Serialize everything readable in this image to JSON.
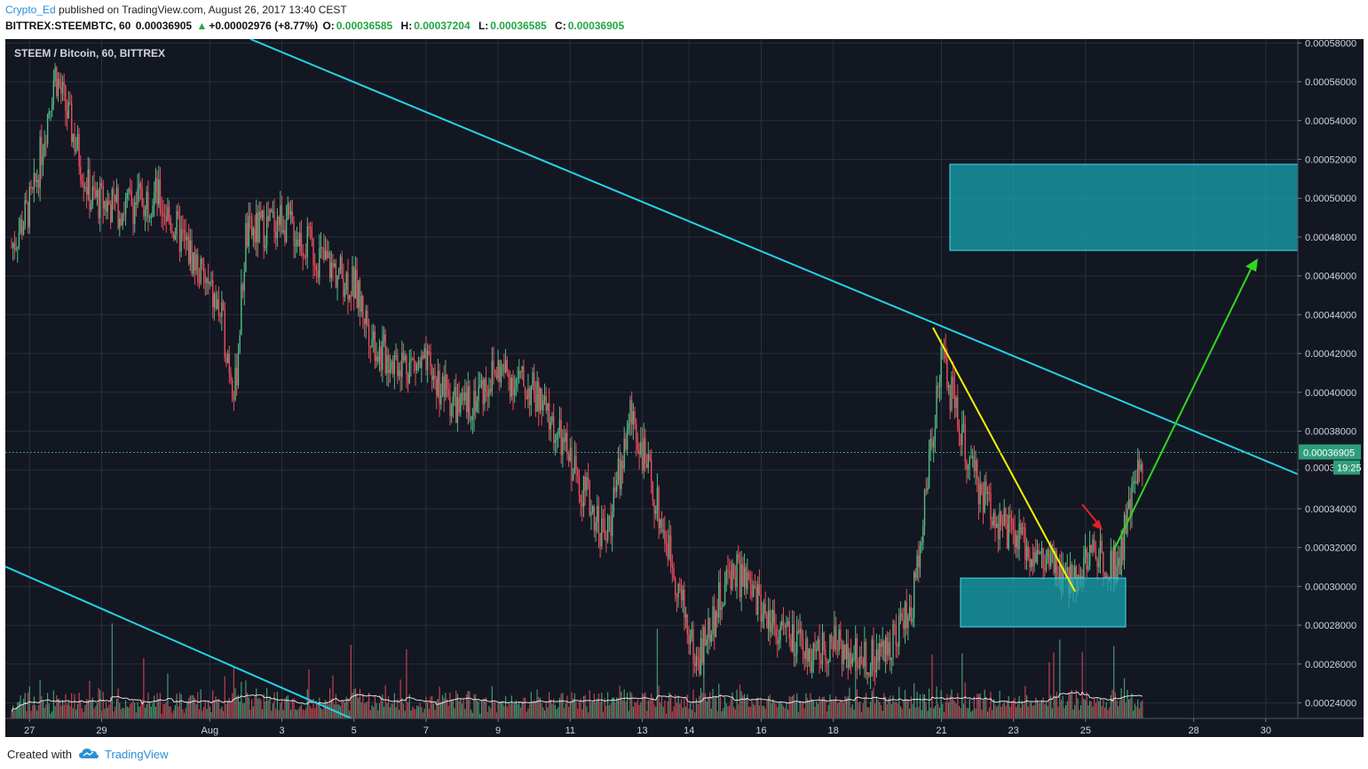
{
  "header": {
    "author": "Crypto_Ed",
    "published": "published on TradingView.com, August 26, 2017 13:40 CEST",
    "symbol": "BITTREX:STEEMBTC, 60",
    "last": "0.00036905",
    "change": "+0.00002976 (+8.77%)",
    "o_label": "O:",
    "o_value": "0.00036585",
    "h_label": "H:",
    "h_value": "0.00037204",
    "l_label": "L:",
    "l_value": "0.00036585",
    "c_label": "C:",
    "c_value": "0.00036905"
  },
  "footer": {
    "created_with": "Created with",
    "brand": "TradingView"
  },
  "colors": {
    "background": "#131722",
    "grid": "#2a2e39",
    "up": "#53b987",
    "down": "#eb4d5c",
    "trendline": "#22d4e6",
    "yellow_line": "#f5f500",
    "green_arrow": "#2fd81e",
    "red_arrow": "#e52222",
    "zone_fill": "#17a5b0",
    "price_line": "#2e9e7a"
  },
  "chart_data": {
    "type": "candlestick",
    "title": "STEEM / Bitcoin, 60, BITTREX",
    "xlabel": "",
    "ylabel": "",
    "x_ticks": [
      "27",
      "29",
      "Aug",
      "3",
      "5",
      "7",
      "9",
      "11",
      "13",
      "14",
      "16",
      "18",
      "21",
      "23",
      "25",
      "28",
      "30"
    ],
    "y_ticks": [
      "0.00024000",
      "0.00026000",
      "0.00028000",
      "0.00030000",
      "0.00032000",
      "0.00034000",
      "0.00036000",
      "0.00038000",
      "0.00040000",
      "0.00042000",
      "0.00044000",
      "0.00046000",
      "0.00048000",
      "0.00050000",
      "0.00052000",
      "0.00054000",
      "0.00056000",
      "0.00058000"
    ],
    "ylim": [
      0.000232,
      0.000582
    ],
    "current_price": {
      "label": "0.00036905",
      "value": 0.00036905,
      "countdown": "19:25",
      "partial_label": "0.0003"
    },
    "price_path": [
      {
        "x": 0,
        "y": 0.000475
      },
      {
        "x": 0.6,
        "y": 0.0005
      },
      {
        "x": 1.2,
        "y": 0.000565
      },
      {
        "x": 1.6,
        "y": 0.00054
      },
      {
        "x": 2.2,
        "y": 0.0005
      },
      {
        "x": 3.0,
        "y": 0.000495
      },
      {
        "x": 4.0,
        "y": 0.000502
      },
      {
        "x": 5.0,
        "y": 0.00047
      },
      {
        "x": 5.8,
        "y": 0.00044
      },
      {
        "x": 6.2,
        "y": 0.0004
      },
      {
        "x": 6.5,
        "y": 0.00048
      },
      {
        "x": 7.5,
        "y": 0.00049
      },
      {
        "x": 8.5,
        "y": 0.00047
      },
      {
        "x": 9.5,
        "y": 0.000455
      },
      {
        "x": 10.2,
        "y": 0.00042
      },
      {
        "x": 11.5,
        "y": 0.000412
      },
      {
        "x": 12.5,
        "y": 0.00039
      },
      {
        "x": 13.5,
        "y": 0.000412
      },
      {
        "x": 14.5,
        "y": 0.0004
      },
      {
        "x": 15.5,
        "y": 0.000365
      },
      {
        "x": 16.5,
        "y": 0.000325
      },
      {
        "x": 17.2,
        "y": 0.00039
      },
      {
        "x": 18.3,
        "y": 0.000315
      },
      {
        "x": 19.0,
        "y": 0.00026
      },
      {
        "x": 20.0,
        "y": 0.00031
      },
      {
        "x": 21.0,
        "y": 0.000285
      },
      {
        "x": 22.0,
        "y": 0.000265
      },
      {
        "x": 23.0,
        "y": 0.00027
      },
      {
        "x": 24.0,
        "y": 0.000262
      },
      {
        "x": 25.0,
        "y": 0.00029
      },
      {
        "x": 25.8,
        "y": 0.00042
      },
      {
        "x": 26.6,
        "y": 0.00036
      },
      {
        "x": 27.5,
        "y": 0.00033
      },
      {
        "x": 28.5,
        "y": 0.000315
      },
      {
        "x": 29.3,
        "y": 0.000302
      },
      {
        "x": 30.0,
        "y": 0.000318
      },
      {
        "x": 30.7,
        "y": 0.000312
      },
      {
        "x": 31.2,
        "y": 0.000355
      },
      {
        "x": 31.4,
        "y": 0.000369
      }
    ],
    "series": []
  }
}
